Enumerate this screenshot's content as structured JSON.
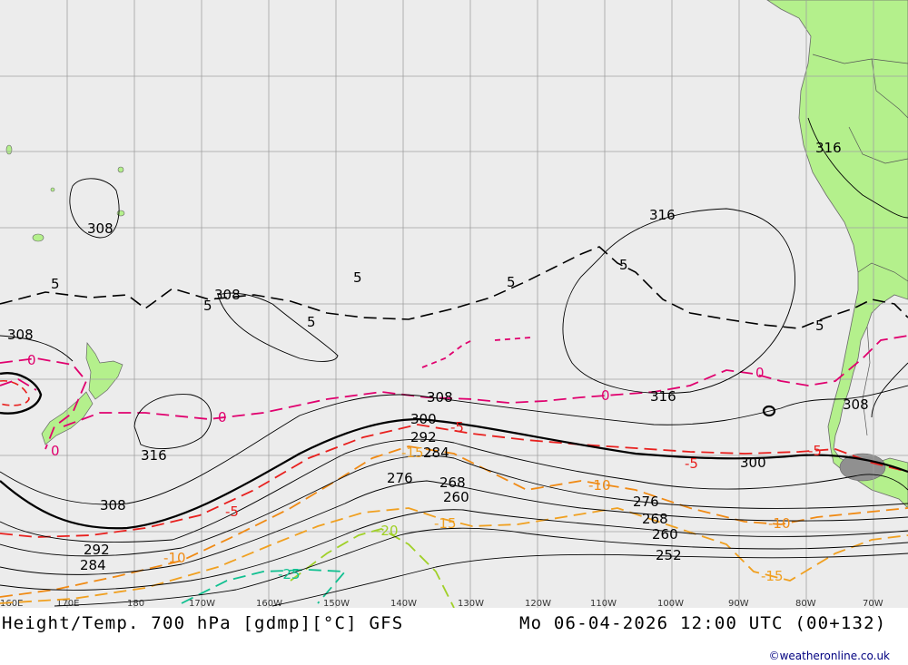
{
  "title": "Height/Temp. 700 hPa [gdmp][°C] GFS",
  "valid_time": "Mo 06-04-2026 12:00 UTC (00+132)",
  "credit": "©weatheronline.co.uk",
  "colors": {
    "ocean": "#ececec",
    "land": "#b4f08c",
    "grid": "#a0a0a0",
    "height_contour": "#000000",
    "temp_0": "#e0006e",
    "temp_neg5": "#e8201e",
    "temp_neg10": "#f08a14",
    "temp_neg15": "#f0a020",
    "temp_neg20": "#a0d028",
    "temp_neg25": "#10c090"
  },
  "longitude_ticks": [
    "160E",
    "170E",
    "180",
    "170W",
    "160W",
    "150W",
    "140W",
    "130W",
    "120W",
    "110W",
    "100W",
    "90W",
    "80W",
    "70W"
  ],
  "height_labels": [
    "308",
    "308",
    "308",
    "316",
    "308",
    "316",
    "308",
    "308",
    "316",
    "300",
    "292",
    "284",
    "276",
    "268",
    "260",
    "300",
    "276",
    "268",
    "260",
    "252",
    "292",
    "284",
    "316"
  ],
  "temp_labels": [
    "5",
    "5",
    "5",
    "5",
    "5",
    "5",
    "5",
    "0",
    "0",
    "0",
    "0",
    "0",
    "-5",
    "-5",
    "-5",
    "-5",
    "-10",
    "-10",
    "-10",
    "-15",
    "-15",
    "-15",
    "-20",
    "-25"
  ]
}
